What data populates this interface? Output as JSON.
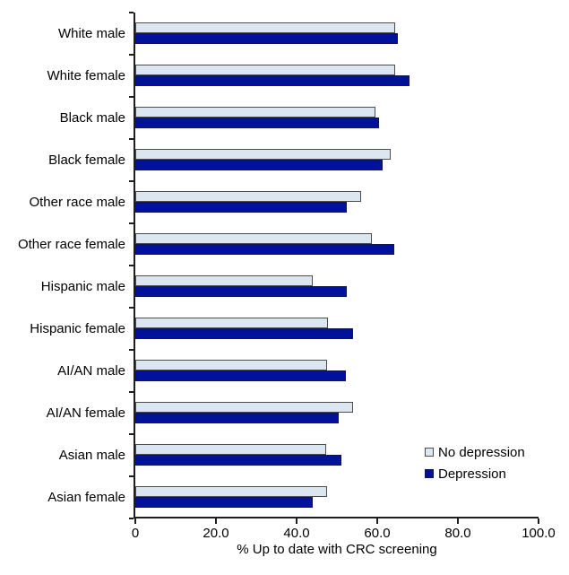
{
  "chart_data": {
    "type": "bar",
    "orientation": "horizontal",
    "title": "",
    "xlabel": "% Up to date with CRC screening",
    "ylabel": "",
    "xlim": [
      0,
      100
    ],
    "grid": false,
    "legend_position": "inside-lower-right",
    "xticks": [
      0,
      20,
      40,
      60,
      80,
      100
    ],
    "xtick_labels": [
      "0",
      "20.0",
      "40.0",
      "60.0",
      "80.0",
      "100.0"
    ],
    "categories": [
      "White male",
      "White female",
      "Black male",
      "Black female",
      "Other race male",
      "Other race female",
      "Hispanic male",
      "Hispanic female",
      "AI/AN male",
      "AI/AN female",
      "Asian male",
      "Asian female"
    ],
    "series": [
      {
        "name": "No depression",
        "fill_color": "#dce6f1",
        "border_color": "#4d4d4d",
        "values": [
          64.4,
          64.4,
          59.6,
          63.3,
          55.9,
          58.7,
          44.1,
          47.8,
          47.6,
          54.0,
          47.3,
          47.6
        ]
      },
      {
        "name": "Depression",
        "fill_color": "#00129b",
        "border_color": "#141450",
        "values": [
          65.0,
          67.9,
          60.5,
          61.4,
          52.5,
          64.2,
          52.5,
          54.0,
          52.2,
          50.4,
          51.1,
          44.1
        ]
      }
    ]
  },
  "colors": {
    "axis": "#1f1f1f",
    "text": "#000000",
    "background": "#ffffff"
  }
}
